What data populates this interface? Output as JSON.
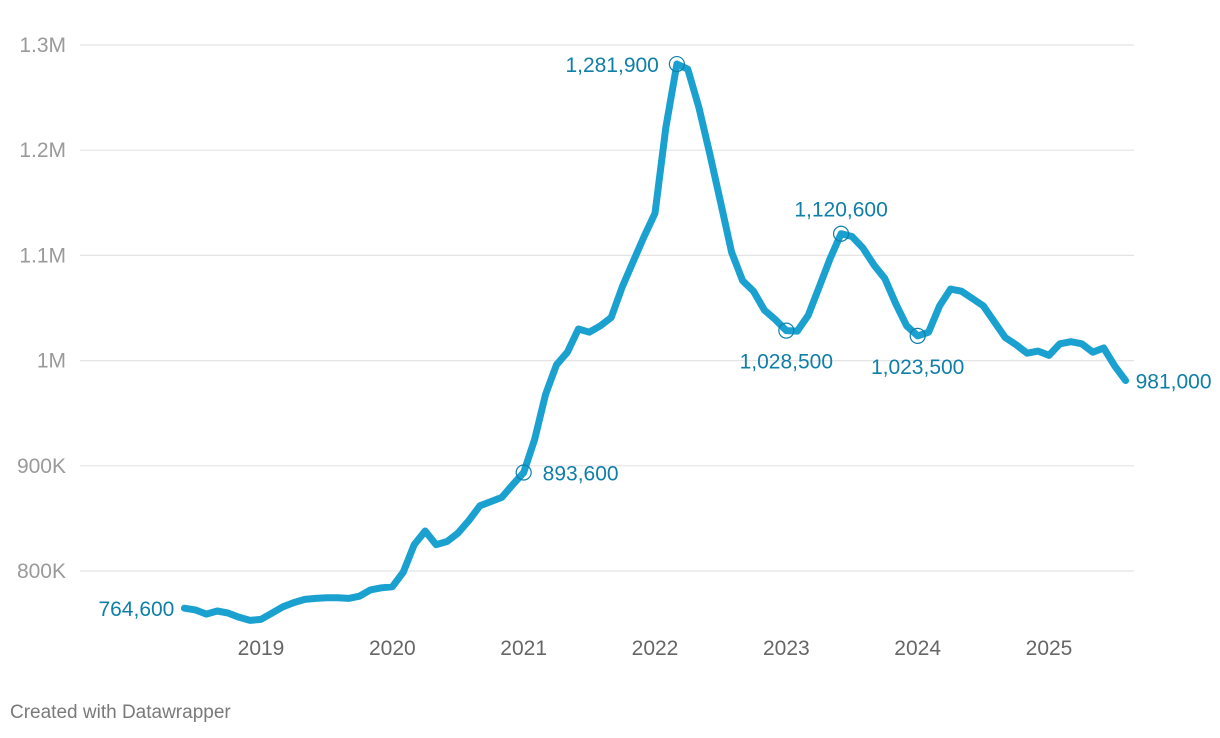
{
  "colors": {
    "line": "#1ba1cf",
    "annotation": "#0f7fa8",
    "grid": "#e4e4e4",
    "baseline": "#888888"
  },
  "footer": {
    "credit": "Created with Datawrapper"
  },
  "chart_data": {
    "type": "line",
    "title": "",
    "xlabel": "",
    "ylabel": "",
    "grid": true,
    "ylim": [
      750000,
      1300000
    ],
    "yticks": [
      800000,
      900000,
      1000000,
      1100000,
      1200000,
      1300000
    ],
    "ytick_labels": [
      "800K",
      "900K",
      "1M",
      "1.1M",
      "1.2M",
      "1.3M"
    ],
    "xticks": [
      "2019",
      "2020",
      "2021",
      "2022",
      "2023",
      "2024",
      "2025"
    ],
    "series": [
      {
        "color": "#1ba1cf",
        "points": [
          [
            "2018-06",
            764600
          ],
          [
            "2018-07",
            763000
          ],
          [
            "2018-08",
            759000
          ],
          [
            "2018-09",
            762000
          ],
          [
            "2018-10",
            760000
          ],
          [
            "2018-11",
            756000
          ],
          [
            "2018-12",
            753000
          ],
          [
            "2019-01",
            754000
          ],
          [
            "2019-02",
            760000
          ],
          [
            "2019-03",
            766000
          ],
          [
            "2019-04",
            770000
          ],
          [
            "2019-05",
            773000
          ],
          [
            "2019-06",
            774000
          ],
          [
            "2019-07",
            774500
          ],
          [
            "2019-08",
            774500
          ],
          [
            "2019-09",
            774000
          ],
          [
            "2019-10",
            776000
          ],
          [
            "2019-11",
            782000
          ],
          [
            "2019-12",
            784000
          ],
          [
            "2020-01",
            785000
          ],
          [
            "2020-02",
            799000
          ],
          [
            "2020-03",
            825000
          ],
          [
            "2020-04",
            838000
          ],
          [
            "2020-05",
            825000
          ],
          [
            "2020-06",
            828000
          ],
          [
            "2020-07",
            836000
          ],
          [
            "2020-08",
            848000
          ],
          [
            "2020-09",
            862000
          ],
          [
            "2020-10",
            866000
          ],
          [
            "2020-11",
            870000
          ],
          [
            "2020-12",
            882000
          ],
          [
            "2021-01",
            893600
          ],
          [
            "2021-02",
            925000
          ],
          [
            "2021-03",
            968000
          ],
          [
            "2021-04",
            996000
          ],
          [
            "2021-05",
            1008000
          ],
          [
            "2021-06",
            1030000
          ],
          [
            "2021-07",
            1027000
          ],
          [
            "2021-08",
            1033000
          ],
          [
            "2021-09",
            1041000
          ],
          [
            "2021-10",
            1070000
          ],
          [
            "2021-11",
            1094000
          ],
          [
            "2021-12",
            1118000
          ],
          [
            "2022-01",
            1140000
          ],
          [
            "2022-02",
            1222000
          ],
          [
            "2022-03",
            1281900
          ],
          [
            "2022-04",
            1277000
          ],
          [
            "2022-05",
            1241000
          ],
          [
            "2022-06",
            1197000
          ],
          [
            "2022-07",
            1150000
          ],
          [
            "2022-08",
            1103000
          ],
          [
            "2022-09",
            1076000
          ],
          [
            "2022-10",
            1066000
          ],
          [
            "2022-11",
            1048000
          ],
          [
            "2022-12",
            1039000
          ],
          [
            "2023-01",
            1028500
          ],
          [
            "2023-02",
            1028000
          ],
          [
            "2023-03",
            1043000
          ],
          [
            "2023-04",
            1070000
          ],
          [
            "2023-05",
            1097000
          ],
          [
            "2023-06",
            1120600
          ],
          [
            "2023-07",
            1118000
          ],
          [
            "2023-08",
            1107000
          ],
          [
            "2023-09",
            1091000
          ],
          [
            "2023-10",
            1078000
          ],
          [
            "2023-11",
            1054000
          ],
          [
            "2023-12",
            1033000
          ],
          [
            "2024-01",
            1023500
          ],
          [
            "2024-02",
            1027000
          ],
          [
            "2024-03",
            1052000
          ],
          [
            "2024-04",
            1068000
          ],
          [
            "2024-05",
            1066000
          ],
          [
            "2024-06",
            1059000
          ],
          [
            "2024-07",
            1052000
          ],
          [
            "2024-08",
            1037000
          ],
          [
            "2024-09",
            1022000
          ],
          [
            "2024-10",
            1015000
          ],
          [
            "2024-11",
            1007000
          ],
          [
            "2024-12",
            1009000
          ],
          [
            "2025-01",
            1005000
          ],
          [
            "2025-02",
            1016000
          ],
          [
            "2025-03",
            1018000
          ],
          [
            "2025-04",
            1016000
          ],
          [
            "2025-05",
            1008000
          ],
          [
            "2025-06",
            1012000
          ],
          [
            "2025-07",
            995000
          ],
          [
            "2025-08",
            981000
          ]
        ]
      }
    ],
    "annotations": [
      {
        "date": "2018-06",
        "value": 764600,
        "label": "764,600",
        "marker": false,
        "anchor": "end"
      },
      {
        "date": "2021-01",
        "value": 893600,
        "label": "893,600",
        "marker": true,
        "anchor": "start"
      },
      {
        "date": "2022-03",
        "value": 1281900,
        "label": "1,281,900",
        "marker": true,
        "anchor": "end"
      },
      {
        "date": "2023-01",
        "value": 1028500,
        "label": "1,028,500",
        "marker": true,
        "anchor": "middle-below"
      },
      {
        "date": "2023-06",
        "value": 1120600,
        "label": "1,120,600",
        "marker": true,
        "anchor": "middle-above"
      },
      {
        "date": "2024-01",
        "value": 1023500,
        "label": "1,023,500",
        "marker": true,
        "anchor": "middle-below"
      },
      {
        "date": "2025-08",
        "value": 981000,
        "label": "981,000",
        "marker": false,
        "anchor": "start"
      }
    ]
  }
}
